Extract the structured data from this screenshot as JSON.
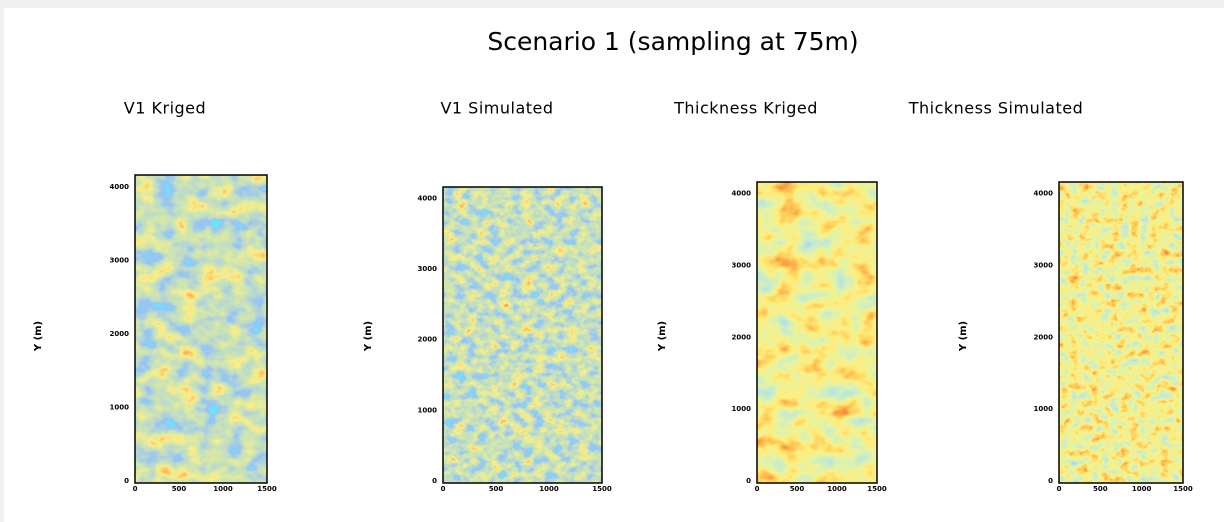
{
  "title": "Scenario 1 (sampling at 75m)",
  "panels": [
    {
      "title": "V1 Kriged",
      "ylabel": "Y (m)",
      "yticks": [
        0,
        1000,
        2000,
        3000,
        4000
      ],
      "xticks": [
        0,
        500,
        1000,
        1500
      ]
    },
    {
      "title": "V1 Simulated",
      "ylabel": "Y (m)",
      "yticks": [
        0,
        1000,
        2000,
        3000,
        4000
      ],
      "xticks": [
        0,
        500,
        1000,
        1500
      ]
    },
    {
      "title": "Thickness Kriged",
      "ylabel": "Y (m)",
      "yticks": [
        0,
        1000,
        2000,
        3000,
        4000
      ],
      "xticks": [
        0,
        500,
        1000,
        1500
      ]
    },
    {
      "title": "Thickness Simulated",
      "ylabel": "Y (m)",
      "yticks": [
        0,
        1000,
        2000,
        3000,
        4000
      ],
      "xticks": [
        0,
        500,
        1000,
        1500
      ]
    }
  ]
}
